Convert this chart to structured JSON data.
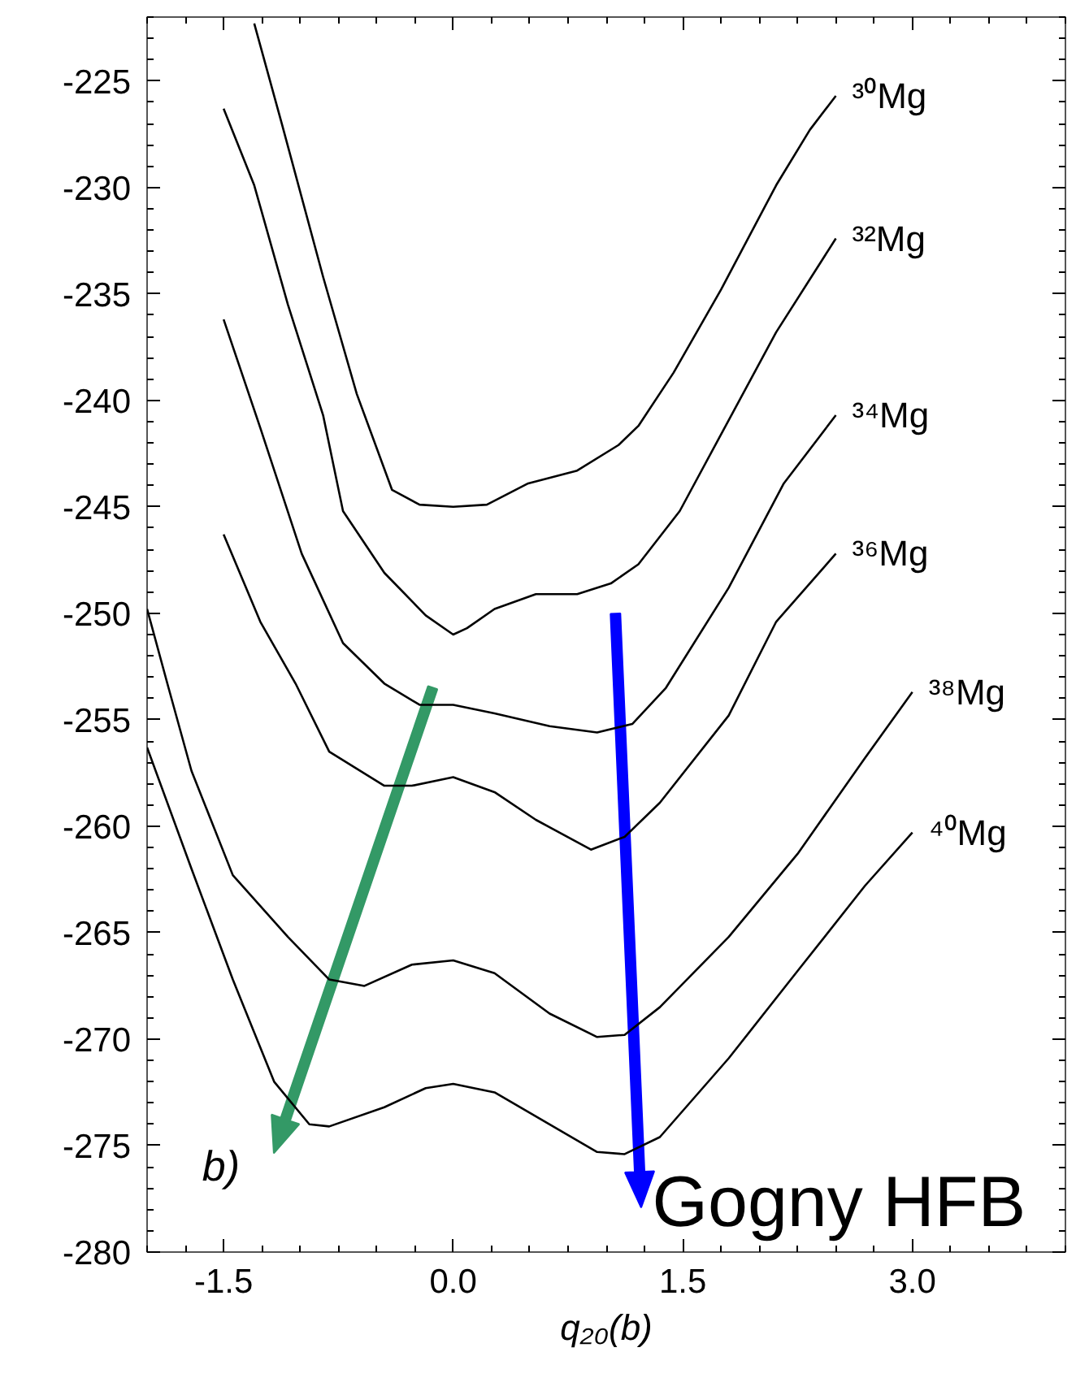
{
  "chart_data": {
    "type": "line",
    "xlabel": "q₂₀(b)",
    "xlim": [
      -2,
      4
    ],
    "ylim": [
      -280,
      -222
    ],
    "xticks": [
      {
        "value": -1.5,
        "label": "-1.5"
      },
      {
        "value": 0,
        "label": "0.0"
      },
      {
        "value": 1.5,
        "label": "1.5"
      },
      {
        "value": 3,
        "label": "3.0"
      }
    ],
    "yticks": [
      -280,
      -275,
      -270,
      -265,
      -260,
      -255,
      -250,
      -245,
      -240,
      -235,
      -230,
      -225
    ],
    "grid": false,
    "legend": "right",
    "marker": "none",
    "line_style": "solid",
    "series": [
      {
        "name": "³⁰Mg",
        "color": "#000000",
        "x": [
          -1.3,
          -1.12,
          -0.85,
          -0.63,
          -0.4,
          -0.22,
          0,
          0.22,
          0.49,
          0.81,
          1.08,
          1.21,
          1.44,
          1.75,
          2.11,
          2.33,
          2.5
        ],
        "values": [
          -222.3,
          -227.0,
          -234.2,
          -239.7,
          -244.2,
          -244.9,
          -245.0,
          -244.9,
          -243.9,
          -243.3,
          -242.1,
          -241.2,
          -238.7,
          -234.8,
          -229.9,
          -227.3,
          -225.7
        ]
      },
      {
        "name": "³²Mg",
        "color": "#000000",
        "x": [
          -1.5,
          -1.3,
          -1.08,
          -0.85,
          -0.72,
          -0.45,
          -0.18,
          0,
          0.09,
          0.27,
          0.54,
          0.81,
          1.03,
          1.21,
          1.48,
          1.75,
          2.11,
          2.5
        ],
        "values": [
          -226.3,
          -229.9,
          -235.5,
          -240.7,
          -245.2,
          -248.1,
          -250.1,
          -251.0,
          -250.7,
          -249.8,
          -249.1,
          -249.1,
          -248.6,
          -247.7,
          -245.2,
          -241.6,
          -236.8,
          -232.4
        ]
      },
      {
        "name": "³⁴Mg",
        "color": "#000000",
        "x": [
          -1.5,
          -1.26,
          -0.99,
          -0.72,
          -0.45,
          -0.22,
          0,
          0.27,
          0.63,
          0.94,
          1.17,
          1.39,
          1.8,
          2.16,
          2.5
        ],
        "values": [
          -236.2,
          -241.3,
          -247.2,
          -251.4,
          -253.3,
          -254.3,
          -254.3,
          -254.7,
          -255.3,
          -255.6,
          -255.2,
          -253.5,
          -248.8,
          -243.9,
          -240.7
        ]
      },
      {
        "name": "³⁶Mg",
        "color": "#000000",
        "x": [
          -1.5,
          -1.26,
          -1.03,
          -0.81,
          -0.45,
          -0.27,
          0,
          0.27,
          0.54,
          0.9,
          1.12,
          1.35,
          1.8,
          2.11,
          2.5
        ],
        "values": [
          -246.3,
          -250.4,
          -253.3,
          -256.5,
          -258.1,
          -258.1,
          -257.7,
          -258.4,
          -259.7,
          -261.1,
          -260.5,
          -258.9,
          -254.8,
          -250.4,
          -247.2
        ]
      },
      {
        "name": "³⁸Mg",
        "color": "#000000",
        "x": [
          -2.0,
          -1.86,
          -1.71,
          -1.44,
          -1.08,
          -0.81,
          -0.58,
          -0.27,
          0,
          0.27,
          0.63,
          0.94,
          1.12,
          1.35,
          1.8,
          2.25,
          2.69,
          3.0
        ],
        "values": [
          -249.8,
          -253.5,
          -257.4,
          -262.3,
          -265.2,
          -267.2,
          -267.5,
          -266.5,
          -266.3,
          -266.9,
          -268.8,
          -269.9,
          -269.8,
          -268.5,
          -265.2,
          -261.3,
          -256.8,
          -253.7
        ]
      },
      {
        "name": "⁴⁰Mg",
        "color": "#000000",
        "x": [
          -2.0,
          -1.71,
          -1.44,
          -1.17,
          -0.94,
          -0.81,
          -0.45,
          -0.18,
          0,
          0.27,
          0.63,
          0.94,
          1.12,
          1.35,
          1.8,
          2.25,
          2.69,
          3.0
        ],
        "values": [
          -256.3,
          -262.0,
          -267.2,
          -272.0,
          -274.0,
          -274.1,
          -273.2,
          -272.3,
          -272.1,
          -272.5,
          -274.0,
          -275.3,
          -275.4,
          -274.6,
          -270.9,
          -266.8,
          -262.8,
          -260.3
        ]
      }
    ],
    "annotations": [
      "b)",
      "Gogny HFB"
    ]
  }
}
